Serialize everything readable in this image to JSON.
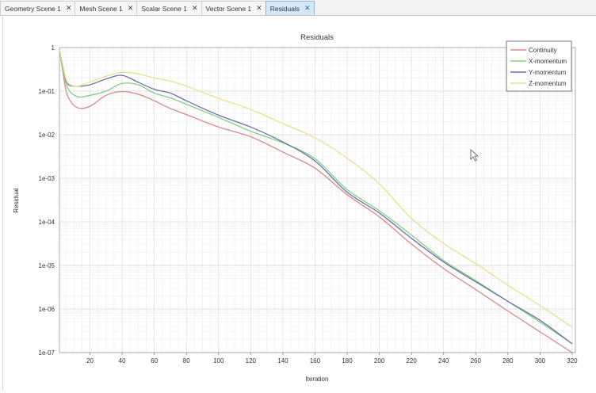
{
  "tabs": [
    {
      "label": "Geometry Scene 1",
      "close": "✕",
      "active": false
    },
    {
      "label": "Mesh Scene 1",
      "close": "✕",
      "active": false
    },
    {
      "label": "Scalar Scene 1",
      "close": "✕",
      "active": false
    },
    {
      "label": "Vector Scene 1",
      "close": "✕",
      "active": false
    },
    {
      "label": "Residuals",
      "close": "✕",
      "active": true
    }
  ],
  "chart_data": {
    "type": "line",
    "title": "Residuals",
    "xlabel": "Iteration",
    "ylabel": "Residual",
    "xlim": [
      1,
      322
    ],
    "ylim": [
      1e-07,
      1
    ],
    "yscale": "log",
    "grid": true,
    "legend_position": "top-right",
    "x_ticks": [
      20,
      40,
      60,
      80,
      100,
      120,
      140,
      160,
      180,
      200,
      220,
      240,
      260,
      280,
      300,
      320
    ],
    "y_ticks": [
      {
        "value": 1,
        "label": "1"
      },
      {
        "value": 0.1,
        "label": "1e-01"
      },
      {
        "value": 0.01,
        "label": "1e-02"
      },
      {
        "value": 0.001,
        "label": "1e-03"
      },
      {
        "value": 0.0001,
        "label": "1e-04"
      },
      {
        "value": 1e-05,
        "label": "1e-05"
      },
      {
        "value": 1e-06,
        "label": "1e-06"
      },
      {
        "value": 1e-07,
        "label": "1e-07"
      }
    ],
    "series": [
      {
        "name": "Continuity",
        "color": "#d98a8a",
        "points": [
          [
            1,
            0.9
          ],
          [
            3,
            0.3
          ],
          [
            6,
            0.08
          ],
          [
            12,
            0.042
          ],
          [
            20,
            0.045
          ],
          [
            30,
            0.08
          ],
          [
            40,
            0.098
          ],
          [
            50,
            0.085
          ],
          [
            60,
            0.06
          ],
          [
            70,
            0.04
          ],
          [
            80,
            0.029
          ],
          [
            100,
            0.015
          ],
          [
            120,
            0.009
          ],
          [
            140,
            0.004
          ],
          [
            160,
            0.0017
          ],
          [
            180,
            0.00042
          ],
          [
            200,
            0.00013
          ],
          [
            220,
            3.1e-05
          ],
          [
            240,
            8.5e-06
          ],
          [
            260,
            2.8e-06
          ],
          [
            280,
            9e-07
          ],
          [
            300,
            3e-07
          ],
          [
            320,
            1e-07
          ]
        ]
      },
      {
        "name": "X-momentum",
        "color": "#7fd17f",
        "points": [
          [
            1,
            0.9
          ],
          [
            3,
            0.35
          ],
          [
            6,
            0.12
          ],
          [
            12,
            0.075
          ],
          [
            20,
            0.08
          ],
          [
            30,
            0.1
          ],
          [
            40,
            0.15
          ],
          [
            50,
            0.14
          ],
          [
            60,
            0.09
          ],
          [
            70,
            0.07
          ],
          [
            80,
            0.05
          ],
          [
            100,
            0.025
          ],
          [
            120,
            0.012
          ],
          [
            140,
            0.0065
          ],
          [
            160,
            0.0028
          ],
          [
            180,
            0.00055
          ],
          [
            200,
            0.00018
          ],
          [
            220,
            5e-05
          ],
          [
            240,
            1.3e-05
          ],
          [
            260,
            4.5e-06
          ],
          [
            280,
            1.5e-06
          ],
          [
            300,
            5e-07
          ],
          [
            320,
            1.6e-07
          ]
        ]
      },
      {
        "name": "Y-momentum",
        "color": "#6b6fae",
        "points": [
          [
            1,
            0.9
          ],
          [
            3,
            0.4
          ],
          [
            6,
            0.15
          ],
          [
            12,
            0.13
          ],
          [
            20,
            0.14
          ],
          [
            30,
            0.19
          ],
          [
            40,
            0.23
          ],
          [
            50,
            0.16
          ],
          [
            60,
            0.11
          ],
          [
            70,
            0.09
          ],
          [
            80,
            0.06
          ],
          [
            100,
            0.028
          ],
          [
            120,
            0.015
          ],
          [
            140,
            0.0068
          ],
          [
            160,
            0.0025
          ],
          [
            180,
            0.00048
          ],
          [
            200,
            0.00016
          ],
          [
            220,
            4.2e-05
          ],
          [
            240,
            1.2e-05
          ],
          [
            260,
            4.2e-06
          ],
          [
            280,
            1.5e-06
          ],
          [
            300,
            5.5e-07
          ],
          [
            320,
            1.6e-07
          ]
        ]
      },
      {
        "name": "Z-momentum",
        "color": "#e8e08a",
        "points": [
          [
            1,
            0.9
          ],
          [
            3,
            0.4
          ],
          [
            6,
            0.16
          ],
          [
            12,
            0.13
          ],
          [
            20,
            0.16
          ],
          [
            30,
            0.22
          ],
          [
            40,
            0.27
          ],
          [
            50,
            0.25
          ],
          [
            60,
            0.2
          ],
          [
            70,
            0.17
          ],
          [
            80,
            0.13
          ],
          [
            100,
            0.068
          ],
          [
            120,
            0.038
          ],
          [
            140,
            0.018
          ],
          [
            160,
            0.0085
          ],
          [
            180,
            0.0029
          ],
          [
            200,
            0.00075
          ],
          [
            220,
            0.00012
          ],
          [
            240,
            3.2e-05
          ],
          [
            260,
            1.1e-05
          ],
          [
            280,
            3.5e-06
          ],
          [
            300,
            1.2e-06
          ],
          [
            320,
            3.8e-07
          ]
        ]
      }
    ]
  }
}
